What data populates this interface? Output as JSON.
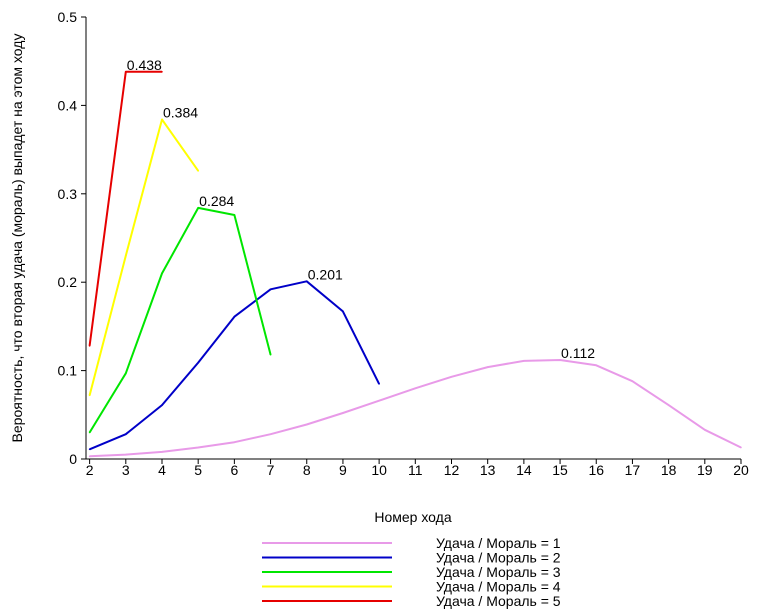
{
  "chart_data": {
    "type": "line",
    "title": "",
    "xlabel": "Номер хода",
    "ylabel": "Вероятность, что вторая удача (мораль) выпадет на этом ходу",
    "xlim": [
      1.9,
      20
    ],
    "ylim": [
      0,
      0.5
    ],
    "x_ticks": [
      2,
      3,
      4,
      5,
      6,
      7,
      8,
      9,
      10,
      11,
      12,
      13,
      14,
      15,
      16,
      17,
      18,
      19,
      20
    ],
    "y_ticks": [
      0,
      0.1,
      0.2,
      0.3,
      0.4,
      0.5
    ],
    "y_tick_labels": [
      "0",
      "0.1",
      "0.2",
      "0.3",
      "0.4",
      "0.5"
    ],
    "grid": false,
    "legend_position": "bottom",
    "series": [
      {
        "name": "Удача / Мораль = 1",
        "color": "#e89ae8",
        "x": [
          2,
          3,
          4,
          5,
          6,
          7,
          8,
          9,
          10,
          11,
          12,
          13,
          14,
          15,
          16,
          17,
          18,
          19,
          20
        ],
        "values": [
          0.003,
          0.005,
          0.008,
          0.013,
          0.019,
          0.028,
          0.039,
          0.052,
          0.066,
          0.08,
          0.093,
          0.104,
          0.111,
          0.112,
          0.106,
          0.088,
          0.061,
          0.033,
          0.013
        ],
        "peak_label": "0.112",
        "peak_index": 13
      },
      {
        "name": "Удача / Мораль = 2",
        "color": "#0000c8",
        "x": [
          2,
          3,
          4,
          5,
          6,
          7,
          8,
          9,
          10
        ],
        "values": [
          0.011,
          0.028,
          0.061,
          0.109,
          0.161,
          0.192,
          0.201,
          0.167,
          0.085
        ],
        "peak_label": "0.201",
        "peak_index": 6
      },
      {
        "name": "Удача / Мораль = 3",
        "color": "#00e600",
        "x": [
          2,
          3,
          4,
          5,
          6,
          7
        ],
        "values": [
          0.03,
          0.097,
          0.21,
          0.284,
          0.276,
          0.118
        ],
        "peak_label": "0.284",
        "peak_index": 3
      },
      {
        "name": "Удача / Мораль = 4",
        "color": "#ffff00",
        "x": [
          2,
          3,
          4,
          5
        ],
        "values": [
          0.072,
          0.23,
          0.384,
          0.326
        ],
        "peak_label": "0.384",
        "peak_index": 2
      },
      {
        "name": "Удача / Мораль = 5",
        "color": "#e60000",
        "x": [
          2,
          3,
          4
        ],
        "values": [
          0.128,
          0.438,
          0.438
        ],
        "peak_label": "0.438",
        "peak_index": 1
      }
    ]
  }
}
